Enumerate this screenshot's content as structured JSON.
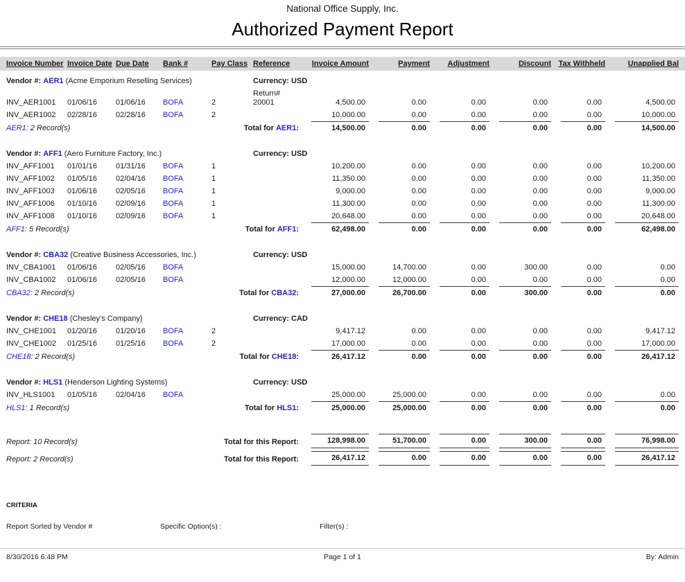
{
  "header": {
    "company": "National Office Supply, Inc.",
    "title": "Authorized Payment Report"
  },
  "labels": {
    "vendor": "Vendor #:",
    "currency": "Currency:",
    "total_for": "Total for",
    "colon": ":"
  },
  "columns": [
    "Invoice Number",
    "Invoice Date",
    "Due Date",
    "Bank #",
    "Pay Class",
    "Reference",
    "Invoice Amount",
    "Payment",
    "Adjustment",
    "Discount",
    "Tax Withheld",
    "Unapplied Bal"
  ],
  "groups": [
    {
      "code": "AER1",
      "name": "(Acme Emporium Reselling Services)",
      "currency": "USD",
      "rows": [
        {
          "fields": [
            "INV_AER1001",
            "01/06/16",
            "01/06/16",
            "BOFA",
            "2",
            "Return#\n20001"
          ],
          "amounts": [
            "4,500.00",
            "0.00",
            "0.00",
            "0.00",
            "0.00",
            "4,500.00"
          ]
        },
        {
          "fields": [
            "INV_AER1002",
            "02/28/16",
            "02/28/16",
            "BOFA",
            "2",
            ""
          ],
          "amounts": [
            "10,000.00",
            "0.00",
            "0.00",
            "0.00",
            "0.00",
            "10,000.00"
          ]
        }
      ],
      "records": ": 2 Record(s)",
      "totals": [
        "14,500.00",
        "0.00",
        "0.00",
        "0.00",
        "0.00",
        "14,500.00"
      ]
    },
    {
      "code": "AFF1",
      "name": "(Aero Furniture Factory, Inc.)",
      "currency": "USD",
      "rows": [
        {
          "fields": [
            "INV_AFF1001",
            "01/01/16",
            "01/31/16",
            "BOFA",
            "1",
            ""
          ],
          "amounts": [
            "10,200.00",
            "0.00",
            "0.00",
            "0.00",
            "0.00",
            "10,200.00"
          ]
        },
        {
          "fields": [
            "INV_AFF1002",
            "01/05/16",
            "02/04/16",
            "BOFA",
            "1",
            ""
          ],
          "amounts": [
            "11,350.00",
            "0.00",
            "0.00",
            "0.00",
            "0.00",
            "11,350.00"
          ]
        },
        {
          "fields": [
            "INV_AFF1003",
            "01/06/16",
            "02/05/16",
            "BOFA",
            "1",
            ""
          ],
          "amounts": [
            "9,000.00",
            "0.00",
            "0.00",
            "0.00",
            "0.00",
            "9,000.00"
          ]
        },
        {
          "fields": [
            "INV_AFF1006",
            "01/10/16",
            "02/09/16",
            "BOFA",
            "1",
            ""
          ],
          "amounts": [
            "11,300.00",
            "0.00",
            "0.00",
            "0.00",
            "0.00",
            "11,300.00"
          ]
        },
        {
          "fields": [
            "INV_AFF1008",
            "01/10/16",
            "02/09/16",
            "BOFA",
            "1",
            ""
          ],
          "amounts": [
            "20,648.00",
            "0.00",
            "0.00",
            "0.00",
            "0.00",
            "20,648.00"
          ]
        }
      ],
      "records": ": 5 Record(s)",
      "totals": [
        "62,498.00",
        "0.00",
        "0.00",
        "0.00",
        "0.00",
        "62,498.00"
      ]
    },
    {
      "code": "CBA32",
      "name": "(Creative Business Accessories, Inc.)",
      "currency": "USD",
      "rows": [
        {
          "fields": [
            "INV_CBA1001",
            "01/06/16",
            "02/05/16",
            "BOFA",
            "",
            ""
          ],
          "amounts": [
            "15,000.00",
            "14,700.00",
            "0.00",
            "300.00",
            "0.00",
            "0.00"
          ]
        },
        {
          "fields": [
            "INV_CBA1002",
            "01/06/16",
            "02/05/16",
            "BOFA",
            "",
            ""
          ],
          "amounts": [
            "12,000.00",
            "12,000.00",
            "0.00",
            "0.00",
            "0.00",
            "0.00"
          ]
        }
      ],
      "records": ": 2 Record(s)",
      "totals": [
        "27,000.00",
        "26,700.00",
        "0.00",
        "300.00",
        "0.00",
        "0.00"
      ]
    },
    {
      "code": "CHE18",
      "name": "(Chesley's Company)",
      "currency": "CAD",
      "rows": [
        {
          "fields": [
            "INV_CHE1001",
            "01/20/16",
            "01/20/16",
            "BOFA",
            "2",
            ""
          ],
          "amounts": [
            "9,417.12",
            "0.00",
            "0.00",
            "0.00",
            "0.00",
            "9,417.12"
          ]
        },
        {
          "fields": [
            "INV_CHE1002",
            "01/25/16",
            "01/25/16",
            "BOFA",
            "2",
            ""
          ],
          "amounts": [
            "17,000.00",
            "0.00",
            "0.00",
            "0.00",
            "0.00",
            "17,000.00"
          ]
        }
      ],
      "records": ": 2 Record(s)",
      "totals": [
        "26,417.12",
        "0.00",
        "0.00",
        "0.00",
        "0.00",
        "26,417.12"
      ]
    },
    {
      "code": "HLS1",
      "name": "(Henderson Lighting Systems)",
      "currency": "USD",
      "rows": [
        {
          "fields": [
            "INV_HLS1001",
            "01/05/16",
            "02/04/16",
            "BOFA",
            "",
            ""
          ],
          "amounts": [
            "25,000.00",
            "25,000.00",
            "0.00",
            "0.00",
            "0.00",
            "0.00"
          ]
        }
      ],
      "records": ": 1 Record(s)",
      "totals": [
        "25,000.00",
        "25,000.00",
        "0.00",
        "0.00",
        "0.00",
        "0.00"
      ]
    }
  ],
  "report_totals": [
    {
      "records": "Report: 10 Record(s)",
      "label": "Total for this Report:",
      "amounts": [
        "128,998.00",
        "51,700.00",
        "0.00",
        "300.00",
        "0.00",
        "76,998.00"
      ]
    },
    {
      "records": "Report: 2 Record(s)",
      "label": "Total for this Report:",
      "amounts": [
        "26,417.12",
        "0.00",
        "0.00",
        "0.00",
        "0.00",
        "26,417.12"
      ]
    }
  ],
  "criteria": {
    "heading": "CRITERIA",
    "sorted_by": "Report Sorted by Vendor #",
    "specific_options": "Specific Option(s) :",
    "filters": "Filter(s) :"
  },
  "footer": {
    "timestamp": "8/30/2016 6:48 PM",
    "page": "Page 1 of 1",
    "author": "By: Admin"
  },
  "colors": {
    "link_blue": "#2222CC",
    "header_bar_gray": "#D9D9D9",
    "rule_gray": "#7D7D7D"
  }
}
